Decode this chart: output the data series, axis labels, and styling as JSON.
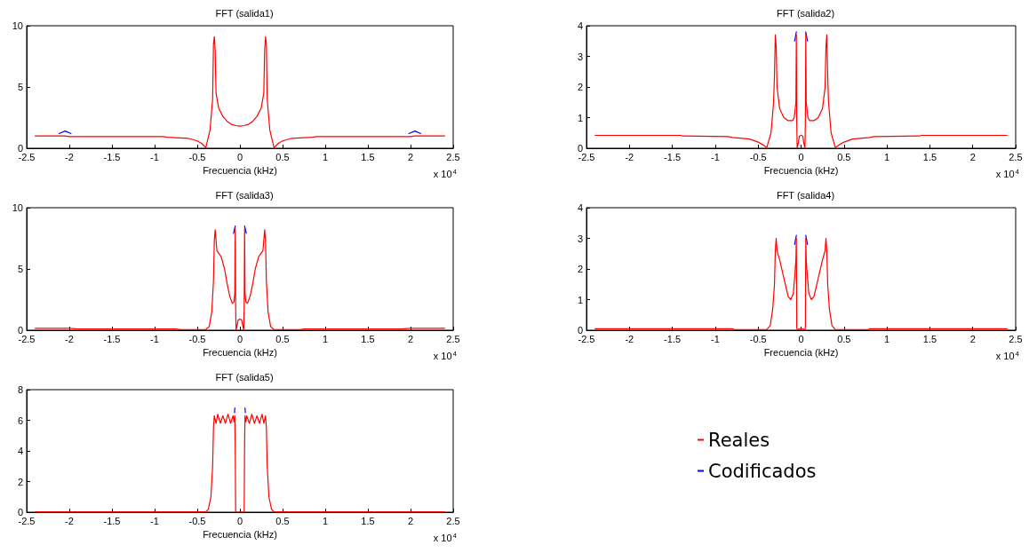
{
  "chart_data": [
    {
      "type": "line",
      "title": "FFT (salida1)",
      "xlabel": "Frecuencia (kHz)",
      "annotations": [
        "x 10$^{4}$"
      ],
      "xlim": [
        -2.5,
        2.5
      ],
      "xticks": [
        -2.5,
        -2,
        -1.5,
        -1,
        -0.5,
        0,
        0.5,
        1,
        1.5,
        2,
        2.5
      ],
      "ylim": [
        0,
        10
      ],
      "yticks": [
        0,
        5,
        10
      ],
      "grid": false,
      "marker": "none",
      "x": [
        -2.4,
        -2.05,
        -2.0,
        -0.9,
        -0.85,
        -0.6,
        -0.5,
        -0.45,
        -0.4,
        -0.35,
        -0.32,
        -0.31,
        -0.3,
        -0.29,
        -0.28,
        -0.25,
        -0.2,
        -0.15,
        -0.1,
        -0.05,
        0,
        0.05,
        0.1,
        0.15,
        0.2,
        0.25,
        0.28,
        0.29,
        0.3,
        0.31,
        0.32,
        0.35,
        0.4,
        0.45,
        0.5,
        0.6,
        0.85,
        0.9,
        2.0,
        2.05,
        2.4
      ],
      "series": [
        {
          "color": "#ff0000",
          "values": [
            1.0,
            1.0,
            0.95,
            0.95,
            0.9,
            0.8,
            0.6,
            0.4,
            0.05,
            1.5,
            4,
            8.5,
            9.1,
            8,
            4.5,
            3.3,
            2.6,
            2.2,
            1.95,
            1.85,
            1.8,
            1.85,
            1.95,
            2.2,
            2.6,
            3.3,
            4.5,
            8,
            9.1,
            8.5,
            4,
            1.5,
            0.05,
            0.4,
            0.6,
            0.8,
            0.9,
            0.95,
            0.95,
            1.0,
            1.0
          ]
        },
        {
          "color": "#0000ff",
          "x": [
            -2.12,
            -2.05,
            -1.98,
            0,
            1.98,
            2.05,
            2.12
          ],
          "values": [
            1.2,
            1.4,
            1.2,
            null,
            1.2,
            1.4,
            1.2
          ]
        }
      ]
    },
    {
      "type": "line",
      "title": "FFT (salida2)",
      "xlabel": "Frecuencia (kHz)",
      "annotations": [
        "x 10$^{4}$"
      ],
      "xlim": [
        -2.5,
        2.5
      ],
      "xticks": [
        -2.5,
        -2,
        -1.5,
        -1,
        -0.5,
        0,
        0.5,
        1,
        1.5,
        2,
        2.5
      ],
      "ylim": [
        0,
        4
      ],
      "yticks": [
        0,
        1,
        2,
        3,
        4
      ],
      "grid": false,
      "marker": "none",
      "x": [
        -2.4,
        -1.4,
        -1.38,
        -0.85,
        -0.8,
        -0.6,
        -0.5,
        -0.45,
        -0.4,
        -0.35,
        -0.32,
        -0.31,
        -0.3,
        -0.29,
        -0.28,
        -0.25,
        -0.2,
        -0.15,
        -0.1,
        -0.08,
        -0.06,
        -0.055,
        -0.05,
        -0.045,
        -0.03,
        -0.02,
        0,
        0.02,
        0.03,
        0.045,
        0.05,
        0.055,
        0.06,
        0.08,
        0.1,
        0.15,
        0.2,
        0.25,
        0.28,
        0.29,
        0.3,
        0.31,
        0.32,
        0.35,
        0.4,
        0.45,
        0.5,
        0.6,
        0.8,
        0.85,
        1.38,
        1.4,
        2.4
      ],
      "series": [
        {
          "color": "#ff0000",
          "values": [
            0.42,
            0.42,
            0.4,
            0.38,
            0.35,
            0.3,
            0.2,
            0.12,
            0.02,
            0.5,
            1.5,
            2.4,
            3.7,
            3.3,
            2.0,
            1.3,
            1.0,
            0.9,
            0.9,
            1.0,
            1.5,
            3.7,
            0.8,
            0,
            0.2,
            0.4,
            0.42,
            0.4,
            0.2,
            0,
            0.8,
            3.75,
            1.5,
            1.0,
            0.9,
            0.9,
            1.0,
            1.3,
            2.0,
            3.3,
            3.7,
            2.4,
            1.5,
            0.5,
            0.02,
            0.12,
            0.2,
            0.3,
            0.35,
            0.38,
            0.4,
            0.42,
            0.42
          ]
        },
        {
          "color": "#0000ff",
          "x": [
            -0.075,
            -0.055,
            0,
            0.055,
            0.075
          ],
          "values": [
            3.5,
            3.8,
            null,
            3.8,
            3.5
          ]
        }
      ]
    },
    {
      "type": "line",
      "title": "FFT (salida3)",
      "xlabel": "Frecuencia (kHz)",
      "annotations": [
        "x 10$^{4}$"
      ],
      "xlim": [
        -2.5,
        2.5
      ],
      "xticks": [
        -2.5,
        -2,
        -1.5,
        -1,
        -0.5,
        0,
        0.5,
        1,
        1.5,
        2,
        2.5
      ],
      "ylim": [
        0,
        10
      ],
      "yticks": [
        0,
        5,
        10
      ],
      "grid": false,
      "marker": "none",
      "x": [
        -2.4,
        -2.0,
        -1.9,
        -0.75,
        -0.7,
        -0.4,
        -0.36,
        -0.33,
        -0.31,
        -0.3,
        -0.29,
        -0.27,
        -0.22,
        -0.18,
        -0.15,
        -0.12,
        -0.09,
        -0.07,
        -0.06,
        -0.055,
        -0.05,
        -0.045,
        -0.03,
        -0.02,
        0,
        0.02,
        0.03,
        0.045,
        0.05,
        0.055,
        0.06,
        0.07,
        0.09,
        0.12,
        0.15,
        0.18,
        0.22,
        0.27,
        0.29,
        0.3,
        0.31,
        0.33,
        0.36,
        0.4,
        0.7,
        0.75,
        1.9,
        2.0,
        2.4
      ],
      "series": [
        {
          "color": "#ff0000",
          "values": [
            0.15,
            0.15,
            0.1,
            0.1,
            0.05,
            0.05,
            0.3,
            1.5,
            4,
            7.3,
            8.2,
            6.5,
            6.0,
            5,
            3.8,
            2.8,
            2.2,
            2.3,
            3,
            8.3,
            2,
            0,
            0.5,
            0.85,
            0.9,
            0.85,
            0.5,
            0,
            2,
            8.3,
            3,
            2.3,
            2.2,
            2.8,
            3.8,
            5,
            6.0,
            6.5,
            8.2,
            7.3,
            4,
            1.5,
            0.3,
            0.05,
            0.05,
            0.1,
            0.1,
            0.15,
            0.15
          ]
        },
        {
          "color": "#0000ff",
          "x": [
            -0.075,
            -0.055,
            0,
            0.055,
            0.075
          ],
          "values": [
            7.9,
            8.5,
            null,
            8.5,
            7.9
          ]
        }
      ]
    },
    {
      "type": "line",
      "title": "FFT (salida4)",
      "xlabel": "Frecuencia (kHz)",
      "annotations": [
        "x 10$^{4}$"
      ],
      "xlim": [
        -2.5,
        2.5
      ],
      "xticks": [
        -2.5,
        -2,
        -1.5,
        -1,
        -0.5,
        0,
        0.5,
        1,
        1.5,
        2,
        2.5
      ],
      "ylim": [
        0,
        4
      ],
      "yticks": [
        0,
        1,
        2,
        3,
        4
      ],
      "grid": false,
      "marker": "none",
      "x": [
        -2.4,
        -0.8,
        -0.78,
        -0.4,
        -0.36,
        -0.33,
        -0.31,
        -0.3,
        -0.29,
        -0.28,
        -0.25,
        -0.2,
        -0.15,
        -0.12,
        -0.09,
        -0.07,
        -0.06,
        -0.055,
        -0.05,
        -0.045,
        -0.02,
        0,
        0.02,
        0.045,
        0.05,
        0.055,
        0.06,
        0.07,
        0.09,
        0.12,
        0.15,
        0.2,
        0.25,
        0.28,
        0.29,
        0.3,
        0.31,
        0.33,
        0.36,
        0.4,
        0.78,
        0.8,
        2.4
      ],
      "series": [
        {
          "color": "#ff0000",
          "values": [
            0.05,
            0.05,
            0.02,
            0.02,
            0.15,
            0.7,
            1.5,
            2.6,
            3.0,
            2.6,
            2.3,
            1.7,
            1.1,
            1.0,
            1.2,
            1.9,
            2.3,
            3.0,
            0.1,
            0,
            0.05,
            0.03,
            0.05,
            0,
            0.1,
            3.0,
            2.3,
            1.9,
            1.2,
            1.0,
            1.1,
            1.7,
            2.3,
            2.6,
            3.0,
            2.6,
            1.5,
            0.7,
            0.15,
            0.02,
            0.02,
            0.05,
            0.05
          ]
        },
        {
          "color": "#0000ff",
          "x": [
            -0.075,
            -0.055,
            0,
            0.055,
            0.075
          ],
          "values": [
            2.8,
            3.1,
            null,
            3.1,
            2.8
          ]
        }
      ]
    },
    {
      "type": "line",
      "title": "FFT (salida5)",
      "xlabel": "Frecuencia (kHz)",
      "annotations": [
        "x 10$^{4}$"
      ],
      "xlim": [
        -2.5,
        2.5
      ],
      "xticks": [
        -2.5,
        -2,
        -1.5,
        -1,
        -0.5,
        0,
        0.5,
        1,
        1.5,
        2,
        2.5
      ],
      "ylim": [
        0,
        8
      ],
      "yticks": [
        0,
        2,
        4,
        6,
        8
      ],
      "grid": false,
      "marker": "none",
      "legend": "right",
      "x": [
        -2.4,
        -0.4,
        -0.37,
        -0.34,
        -0.32,
        -0.31,
        -0.3,
        -0.28,
        -0.26,
        -0.23,
        -0.2,
        -0.17,
        -0.14,
        -0.11,
        -0.08,
        -0.07,
        -0.06,
        -0.055,
        -0.05,
        0,
        0.05,
        0.055,
        0.06,
        0.07,
        0.08,
        0.11,
        0.14,
        0.17,
        0.2,
        0.23,
        0.26,
        0.28,
        0.3,
        0.31,
        0.32,
        0.34,
        0.37,
        0.4,
        2.4
      ],
      "series": [
        {
          "name": "Reales",
          "color": "#ff0000",
          "values": [
            0.02,
            0.02,
            0.2,
            1,
            3,
            5.5,
            6.3,
            5.8,
            6.4,
            5.8,
            6.3,
            5.8,
            6.4,
            5.8,
            6.3,
            5.9,
            6.3,
            4.5,
            0,
            0,
            0,
            4.5,
            6.3,
            5.9,
            6.3,
            5.8,
            6.4,
            5.8,
            6.3,
            5.8,
            6.4,
            5.8,
            6.3,
            5.5,
            3,
            1,
            0.2,
            0.02,
            0.02
          ]
        },
        {
          "name": "Codificados",
          "color": "#0000ff",
          "x": [
            -0.063,
            -0.0615,
            -0.06,
            0,
            0.06,
            0.0615,
            0.063
          ],
          "values": [
            6.5,
            6.65,
            6.8,
            null,
            6.8,
            6.65,
            6.5
          ]
        }
      ]
    }
  ]
}
